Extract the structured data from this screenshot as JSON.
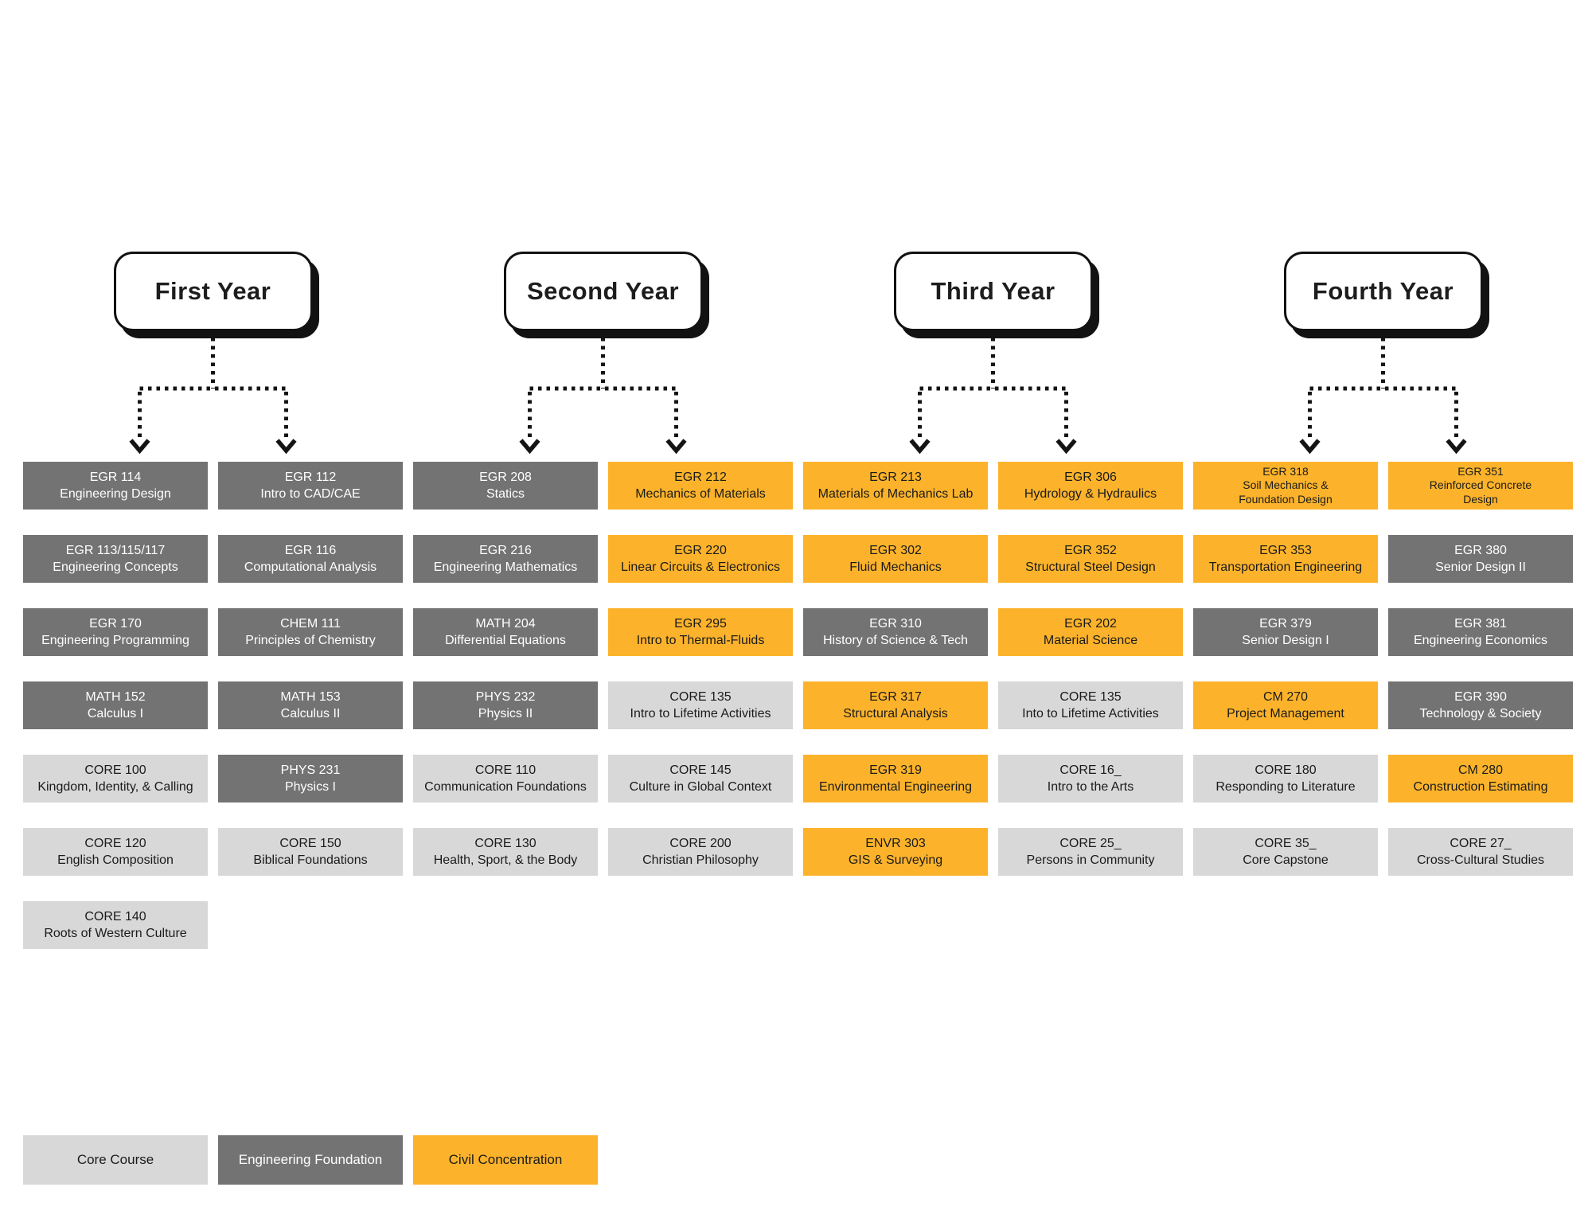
{
  "colors": {
    "core": "#d8d8d8",
    "foundation": "#737373",
    "civil": "#fcb32b",
    "text_dark": "#1b1b1b",
    "text_light": "#ffffff",
    "connector": "#141414"
  },
  "legend": {
    "items": [
      {
        "label": "Core Course",
        "type": "core"
      },
      {
        "label": "Engineering Foundation",
        "type": "foundation"
      },
      {
        "label": "Civil Concentration",
        "type": "civil"
      }
    ]
  },
  "years": [
    {
      "label": "First Year",
      "columns": [
        {
          "courses": [
            {
              "code": "EGR 114",
              "title": "Engineering Design",
              "type": "foundation"
            },
            {
              "code": "EGR 113/115/117",
              "title": "Engineering Concepts",
              "type": "foundation"
            },
            {
              "code": "EGR 170",
              "title": "Engineering Programming",
              "type": "foundation"
            },
            {
              "code": "MATH 152",
              "title": "Calculus I",
              "type": "foundation"
            },
            {
              "code": "CORE 100",
              "title": "Kingdom, Identity, & Calling",
              "type": "core"
            },
            {
              "code": "CORE 120",
              "title": "English Composition",
              "type": "core"
            },
            {
              "code": "CORE 140",
              "title": "Roots of Western Culture",
              "type": "core"
            }
          ]
        },
        {
          "courses": [
            {
              "code": "EGR 112",
              "title": "Intro to CAD/CAE",
              "type": "foundation"
            },
            {
              "code": "EGR 116",
              "title": "Computational Analysis",
              "type": "foundation"
            },
            {
              "code": "CHEM 111",
              "title": "Principles of Chemistry",
              "type": "foundation"
            },
            {
              "code": "MATH 153",
              "title": "Calculus II",
              "type": "foundation"
            },
            {
              "code": "PHYS 231",
              "title": "Physics I",
              "type": "foundation"
            },
            {
              "code": "CORE 150",
              "title": "Biblical Foundations",
              "type": "core"
            }
          ]
        }
      ]
    },
    {
      "label": "Second Year",
      "columns": [
        {
          "courses": [
            {
              "code": "EGR 208",
              "title": "Statics",
              "type": "foundation"
            },
            {
              "code": "EGR 216",
              "title": "Engineering Mathematics",
              "type": "foundation"
            },
            {
              "code": "MATH 204",
              "title": "Differential Equations",
              "type": "foundation"
            },
            {
              "code": "PHYS 232",
              "title": "Physics II",
              "type": "foundation"
            },
            {
              "code": "CORE 110",
              "title": "Communication Foundations",
              "type": "core"
            },
            {
              "code": "CORE 130",
              "title": "Health, Sport, & the Body",
              "type": "core"
            }
          ]
        },
        {
          "courses": [
            {
              "code": "EGR 212",
              "title": "Mechanics of Materials",
              "type": "civil"
            },
            {
              "code": "EGR 220",
              "title": "Linear Circuits & Electronics",
              "type": "civil"
            },
            {
              "code": "EGR 295",
              "title": "Intro to Thermal-Fluids",
              "type": "civil"
            },
            {
              "code": "CORE 135",
              "title": "Intro to Lifetime Activities",
              "type": "core"
            },
            {
              "code": "CORE 145",
              "title": "Culture in Global Context",
              "type": "core"
            },
            {
              "code": "CORE 200",
              "title": "Christian Philosophy",
              "type": "core"
            }
          ]
        }
      ]
    },
    {
      "label": "Third Year",
      "columns": [
        {
          "courses": [
            {
              "code": "EGR 213",
              "title": "Materials of Mechanics Lab",
              "type": "civil"
            },
            {
              "code": "EGR 302",
              "title": "Fluid Mechanics",
              "type": "civil"
            },
            {
              "code": "EGR 310",
              "title": "History of Science & Tech",
              "type": "foundation"
            },
            {
              "code": "EGR 317",
              "title": "Structural Analysis",
              "type": "civil"
            },
            {
              "code": "EGR 319",
              "title": "Environmental Engineering",
              "type": "civil"
            },
            {
              "code": "ENVR 303",
              "title": "GIS & Surveying",
              "type": "civil"
            }
          ]
        },
        {
          "courses": [
            {
              "code": "EGR 306",
              "title": "Hydrology & Hydraulics",
              "type": "civil"
            },
            {
              "code": "EGR 352",
              "title": "Structural Steel Design",
              "type": "civil"
            },
            {
              "code": "EGR 202",
              "title": "Material Science",
              "type": "civil"
            },
            {
              "code": "CORE 135",
              "title": "Into to Lifetime Activities",
              "type": "core"
            },
            {
              "code": "CORE 16_",
              "title": "Intro to the Arts",
              "type": "core"
            },
            {
              "code": "CORE 25_",
              "title": "Persons in Community",
              "type": "core"
            }
          ]
        }
      ]
    },
    {
      "label": "Fourth Year",
      "columns": [
        {
          "courses": [
            {
              "code": "EGR 318",
              "title": "Soil Mechanics &\nFoundation Design",
              "type": "civil"
            },
            {
              "code": "EGR 353",
              "title": "Transportation Engineering",
              "type": "civil"
            },
            {
              "code": "EGR 379",
              "title": "Senior Design I",
              "type": "foundation"
            },
            {
              "code": "CM 270",
              "title": "Project Management",
              "type": "civil"
            },
            {
              "code": "CORE 180",
              "title": "Responding to Literature",
              "type": "core"
            },
            {
              "code": "CORE 35_",
              "title": "Core Capstone",
              "type": "core"
            }
          ]
        },
        {
          "courses": [
            {
              "code": "EGR 351",
              "title": "Reinforced Concrete\nDesign",
              "type": "civil"
            },
            {
              "code": "EGR 380",
              "title": "Senior Design II",
              "type": "foundation"
            },
            {
              "code": "EGR 381",
              "title": "Engineering Economics",
              "type": "foundation"
            },
            {
              "code": "EGR 390",
              "title": "Technology & Society",
              "type": "foundation"
            },
            {
              "code": "CM 280",
              "title": "Construction Estimating",
              "type": "civil"
            },
            {
              "code": "CORE 27_",
              "title": "Cross-Cultural Studies",
              "type": "core"
            }
          ]
        }
      ]
    }
  ]
}
